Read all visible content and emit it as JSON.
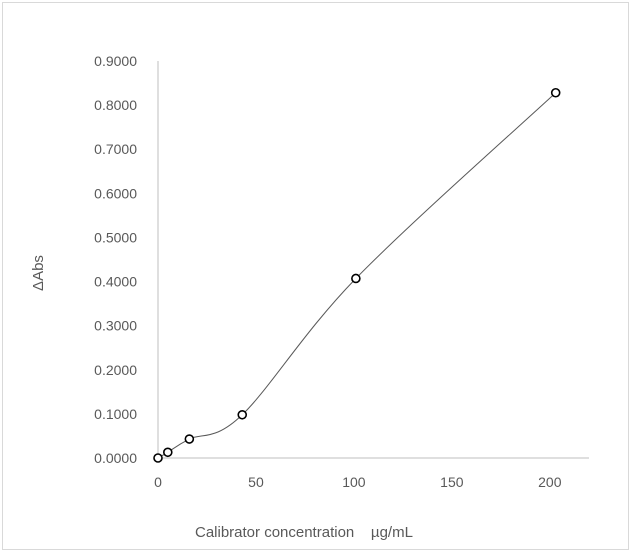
{
  "chart_data": {
    "type": "scatter",
    "title": "",
    "xlabel": "Calibrator concentration    µg/mL",
    "ylabel": "ΔAbs",
    "xlim": [
      0,
      220
    ],
    "ylim": [
      0,
      0.9
    ],
    "xticks": [
      0,
      50,
      100,
      150,
      200
    ],
    "yticks": [
      0,
      0.1,
      0.2,
      0.3,
      0.4,
      0.5,
      0.6,
      0.7,
      0.8,
      0.9
    ],
    "xtick_labels": [
      "0",
      "50",
      "100",
      "150",
      "200"
    ],
    "ytick_labels": [
      "0.0000",
      "0.1000",
      "0.2000",
      "0.3000",
      "0.4000",
      "0.5000",
      "0.6000",
      "0.7000",
      "0.8000",
      "0.9000"
    ],
    "grid": false,
    "smoothed_line": true,
    "series": [
      {
        "x": [
          0,
          5,
          16,
          43,
          101,
          203
        ],
        "y": [
          0.0,
          0.013,
          0.043,
          0.098,
          0.407,
          0.828
        ]
      }
    ],
    "colors": {
      "line": "#595959",
      "marker_edge": "#000000",
      "marker_fill": "#ffffff",
      "axis": "#bfbfbf"
    }
  }
}
